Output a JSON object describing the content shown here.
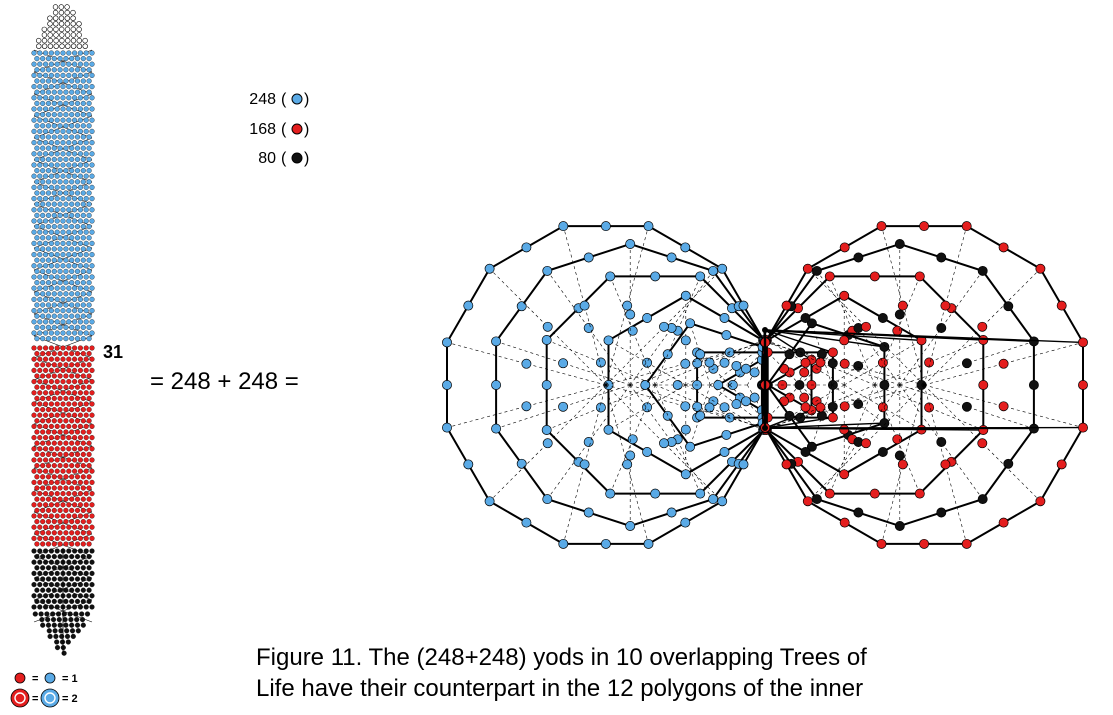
{
  "legend": {
    "items": [
      {
        "value": "248",
        "color": "#5aaae6"
      },
      {
        "value": "168",
        "color": "#e41e1e"
      },
      {
        "value": "80",
        "color": "#111111"
      }
    ]
  },
  "column": {
    "label": "31"
  },
  "equation": "= 248 + 248 =",
  "key": {
    "rows": [
      {
        "eq1": "=",
        "eq2": "= 1"
      },
      {
        "eq1": "=",
        "eq2": "= 2"
      }
    ]
  },
  "colors": {
    "blue": "#5aaae6",
    "red": "#e41e1e",
    "black": "#111111",
    "white": "#ffffff"
  },
  "polygons": {
    "left": [
      {
        "sides": 3,
        "color": "blue"
      },
      {
        "sides": 4,
        "color": "blue"
      },
      {
        "sides": 5,
        "color": "blue"
      },
      {
        "sides": 6,
        "color": "blue"
      },
      {
        "sides": 8,
        "color": "blue"
      },
      {
        "sides": 10,
        "color": "blue"
      },
      {
        "sides": 12,
        "color": "blue"
      }
    ],
    "right": [
      {
        "sides": 3,
        "color": "red"
      },
      {
        "sides": 4,
        "color": "red"
      },
      {
        "sides": 5,
        "color": "black"
      },
      {
        "sides": 6,
        "color": "red"
      },
      {
        "sides": 8,
        "color": "red"
      },
      {
        "sides": 10,
        "color": "black"
      },
      {
        "sides": 12,
        "color": "red"
      }
    ]
  },
  "caption": "Figure 11. The (248+248) yods in 10 overlapping Trees of\nLife have their counterpart in the 12 polygons of the inner"
}
